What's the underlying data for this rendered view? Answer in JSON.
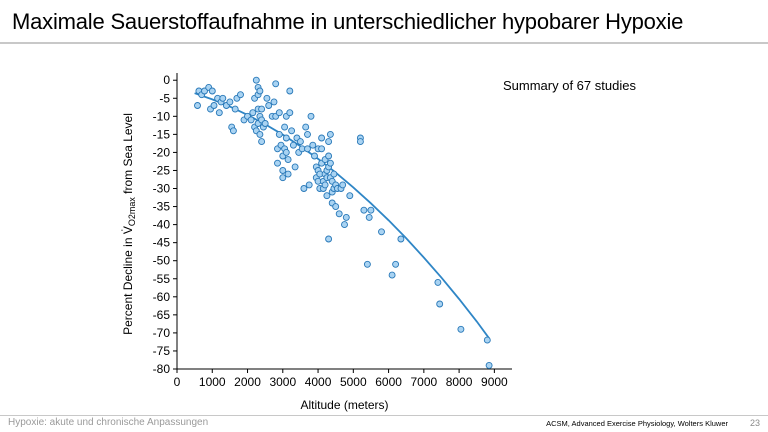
{
  "slide": {
    "title": "Maximale Sauerstoffaufnahme in unterschiedlicher hypobarer Hypoxie",
    "footer_left": "Hypoxie: akute und chronische Anpassungen",
    "footer_source": "ACSM, Advanced Exercise Physiology, Wolters Kluwer",
    "page_number": "23"
  },
  "colors": {
    "point_fill": "#a9d3f2",
    "point_stroke": "#2878b8",
    "curve": "#2f86c6",
    "axis": "#000000"
  },
  "chart_data": {
    "type": "scatter",
    "xlabel": "Altitude (meters)",
    "ylabel_prefix": "Percent Decline in ",
    "ylabel_symbol": "V",
    "ylabel_subscript": "O2max",
    "ylabel_suffix": " from Sea Level",
    "annotation": "Summary of 67 studies",
    "xlim": [
      0,
      9500
    ],
    "ylim": [
      -80,
      2
    ],
    "xticks": [
      0,
      1000,
      2000,
      3000,
      4000,
      5000,
      6000,
      7000,
      8000,
      9000
    ],
    "yticks": [
      0,
      -5,
      -10,
      -15,
      -20,
      -25,
      -30,
      -35,
      -40,
      -45,
      -50,
      -55,
      -60,
      -65,
      -70,
      -75,
      -80
    ],
    "x": [
      580,
      620,
      700,
      780,
      900,
      950,
      1000,
      1050,
      1150,
      1200,
      1250,
      1300,
      1400,
      1500,
      1550,
      1600,
      1650,
      1700,
      1800,
      1900,
      2000,
      2100,
      2150,
      2200,
      2200,
      2250,
      2250,
      2300,
      2300,
      2300,
      2300,
      2350,
      2350,
      2350,
      2400,
      2400,
      2400,
      2450,
      2500,
      2550,
      2600,
      2700,
      2750,
      2800,
      2800,
      2850,
      2850,
      2900,
      2900,
      2950,
      3000,
      3000,
      3000,
      3050,
      3050,
      3100,
      3100,
      3100,
      3150,
      3150,
      3200,
      3200,
      3250,
      3300,
      3350,
      3400,
      3450,
      3500,
      3550,
      3600,
      3650,
      3700,
      3700,
      3750,
      3800,
      3850,
      3900,
      3950,
      3950,
      4000,
      4000,
      4000,
      4050,
      4050,
      4100,
      4100,
      4100,
      4150,
      4150,
      4200,
      4200,
      4200,
      4250,
      4250,
      4250,
      4300,
      4300,
      4300,
      4300,
      4350,
      4350,
      4350,
      4400,
      4400,
      4400,
      4450,
      4450,
      4500,
      4500,
      4550,
      4600,
      4650,
      4700,
      4750,
      4800,
      4900,
      5200,
      5200,
      5300,
      5400,
      5450,
      5500,
      5800,
      6100,
      6200,
      6350,
      7400,
      7450,
      8050,
      8800,
      8850
    ],
    "y": [
      -7,
      -3,
      -4,
      -3,
      -2,
      -8,
      -3,
      -7,
      -5,
      -9,
      -6,
      -5,
      -7,
      -6,
      -13,
      -14,
      -8,
      -5,
      -4,
      -11,
      -10,
      -11,
      -9,
      -5,
      -13,
      -14,
      0,
      -2,
      -4,
      -8,
      -12,
      -3,
      -10,
      -15,
      -8,
      -11,
      -17,
      -13,
      -12,
      -5,
      -7,
      -10,
      -6,
      -1,
      -10,
      -19,
      -23,
      -9,
      -15,
      -18,
      -21,
      -27,
      -25,
      -13,
      -19,
      -10,
      -16,
      -20,
      -22,
      -26,
      -3,
      -9,
      -14,
      -18,
      -24,
      -16,
      -20,
      -17,
      -19,
      -30,
      -13,
      -15,
      -19,
      -29,
      -10,
      -18,
      -21,
      -24,
      -27,
      -19,
      -25,
      -28,
      -26,
      -30,
      -16,
      -19,
      -23,
      -28,
      -30,
      -22,
      -26,
      -29,
      -25,
      -27,
      -32,
      -44,
      -17,
      -21,
      -24,
      -27,
      -15,
      -23,
      -28,
      -31,
      -34,
      -26,
      -30,
      -29,
      -35,
      -30,
      -37,
      -30,
      -29,
      -40,
      -38,
      -32,
      -16,
      -17,
      -36,
      -51,
      -38,
      -36,
      -42,
      -54,
      -51,
      -44,
      -56,
      -62,
      -69,
      -72,
      -79
    ],
    "fit_curve_x": [
      500,
      1000,
      1500,
      2000,
      2500,
      3000,
      3500,
      4000,
      4500,
      5000,
      5500,
      6000,
      6500,
      7000,
      7500,
      8000,
      8500,
      8850
    ],
    "fit_curve_y": [
      -3.6,
      -5.3,
      -7.3,
      -9.6,
      -12.2,
      -15.1,
      -18.3,
      -21.8,
      -25.6,
      -29.7,
      -34.1,
      -38.8,
      -43.8,
      -49.1,
      -54.7,
      -60.6,
      -66.8,
      -71.5
    ]
  }
}
